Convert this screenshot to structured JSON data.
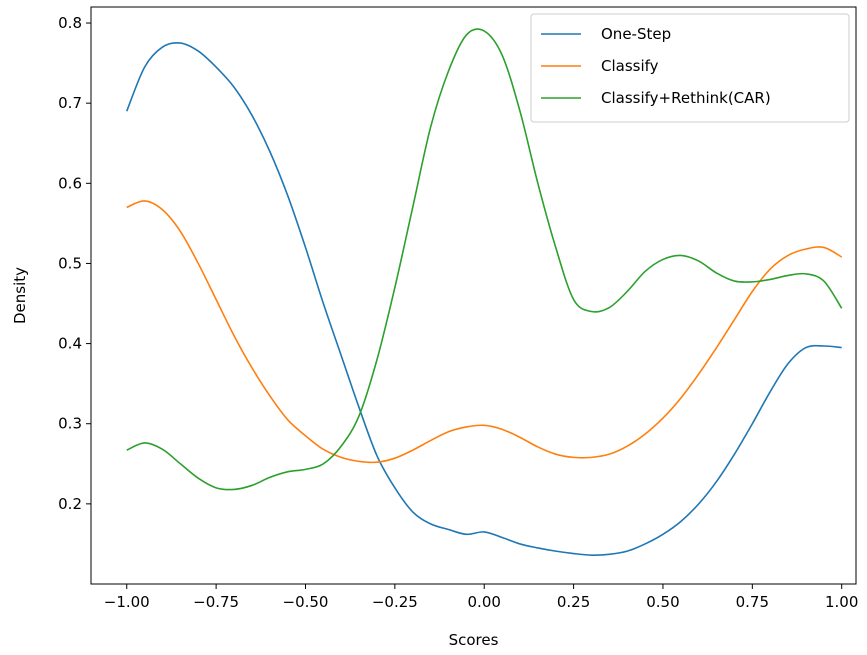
{
  "chart_data": {
    "type": "line",
    "title": "",
    "xlabel": "Scores",
    "ylabel": "Density",
    "xlim": [
      -1.1,
      1.04
    ],
    "ylim": [
      0.1,
      0.82
    ],
    "xticks": [
      -1.0,
      -0.75,
      -0.5,
      -0.25,
      0.0,
      0.25,
      0.5,
      0.75,
      1.0
    ],
    "xtick_labels": [
      "−1.00",
      "−0.75",
      "−0.50",
      "−0.25",
      "0.00",
      "0.25",
      "0.50",
      "0.75",
      "1.00"
    ],
    "yticks": [
      0.2,
      0.3,
      0.4,
      0.5,
      0.6,
      0.7,
      0.8
    ],
    "ytick_labels": [
      "0.2",
      "0.3",
      "0.4",
      "0.5",
      "0.6",
      "0.7",
      "0.8"
    ],
    "grid": false,
    "legend_position": "top-right",
    "series": [
      {
        "name": "One-Step",
        "color": "#1f77b4",
        "x": [
          -1.0,
          -0.95,
          -0.9,
          -0.85,
          -0.8,
          -0.75,
          -0.7,
          -0.65,
          -0.6,
          -0.55,
          -0.5,
          -0.45,
          -0.4,
          -0.35,
          -0.3,
          -0.25,
          -0.2,
          -0.15,
          -0.1,
          -0.05,
          0.0,
          0.05,
          0.1,
          0.15,
          0.2,
          0.25,
          0.3,
          0.35,
          0.4,
          0.45,
          0.5,
          0.55,
          0.6,
          0.65,
          0.7,
          0.75,
          0.8,
          0.85,
          0.9,
          0.95,
          1.0
        ],
        "y": [
          0.69,
          0.745,
          0.77,
          0.775,
          0.765,
          0.745,
          0.72,
          0.685,
          0.64,
          0.585,
          0.52,
          0.45,
          0.385,
          0.32,
          0.26,
          0.22,
          0.19,
          0.175,
          0.168,
          0.162,
          0.165,
          0.158,
          0.15,
          0.145,
          0.141,
          0.138,
          0.136,
          0.137,
          0.141,
          0.15,
          0.162,
          0.178,
          0.2,
          0.228,
          0.262,
          0.3,
          0.34,
          0.375,
          0.395,
          0.397,
          0.395
        ]
      },
      {
        "name": "Classify",
        "color": "#ff7f0e",
        "x": [
          -1.0,
          -0.95,
          -0.9,
          -0.85,
          -0.8,
          -0.75,
          -0.7,
          -0.65,
          -0.6,
          -0.55,
          -0.5,
          -0.45,
          -0.4,
          -0.35,
          -0.3,
          -0.25,
          -0.2,
          -0.15,
          -0.1,
          -0.05,
          0.0,
          0.05,
          0.1,
          0.15,
          0.2,
          0.25,
          0.3,
          0.35,
          0.4,
          0.45,
          0.5,
          0.55,
          0.6,
          0.65,
          0.7,
          0.75,
          0.8,
          0.85,
          0.9,
          0.95,
          1.0
        ],
        "y": [
          0.57,
          0.578,
          0.567,
          0.54,
          0.5,
          0.455,
          0.41,
          0.37,
          0.335,
          0.305,
          0.285,
          0.268,
          0.258,
          0.253,
          0.252,
          0.257,
          0.267,
          0.279,
          0.29,
          0.296,
          0.298,
          0.293,
          0.283,
          0.271,
          0.262,
          0.258,
          0.258,
          0.262,
          0.272,
          0.287,
          0.307,
          0.332,
          0.362,
          0.395,
          0.43,
          0.465,
          0.493,
          0.51,
          0.518,
          0.52,
          0.508
        ]
      },
      {
        "name": "Classify+Rethink(CAR)",
        "color": "#2ca02c",
        "x": [
          -1.0,
          -0.95,
          -0.9,
          -0.85,
          -0.8,
          -0.75,
          -0.7,
          -0.65,
          -0.6,
          -0.55,
          -0.5,
          -0.45,
          -0.4,
          -0.35,
          -0.3,
          -0.25,
          -0.2,
          -0.15,
          -0.1,
          -0.05,
          0.0,
          0.05,
          0.1,
          0.15,
          0.2,
          0.25,
          0.3,
          0.35,
          0.4,
          0.45,
          0.5,
          0.55,
          0.6,
          0.65,
          0.7,
          0.75,
          0.8,
          0.85,
          0.9,
          0.95,
          1.0
        ],
        "y": [
          0.267,
          0.276,
          0.268,
          0.25,
          0.232,
          0.22,
          0.218,
          0.223,
          0.233,
          0.24,
          0.243,
          0.25,
          0.272,
          0.31,
          0.38,
          0.47,
          0.57,
          0.67,
          0.74,
          0.785,
          0.79,
          0.76,
          0.69,
          0.6,
          0.52,
          0.455,
          0.44,
          0.445,
          0.465,
          0.49,
          0.505,
          0.51,
          0.503,
          0.488,
          0.478,
          0.477,
          0.48,
          0.485,
          0.487,
          0.478,
          0.444
        ]
      }
    ]
  }
}
